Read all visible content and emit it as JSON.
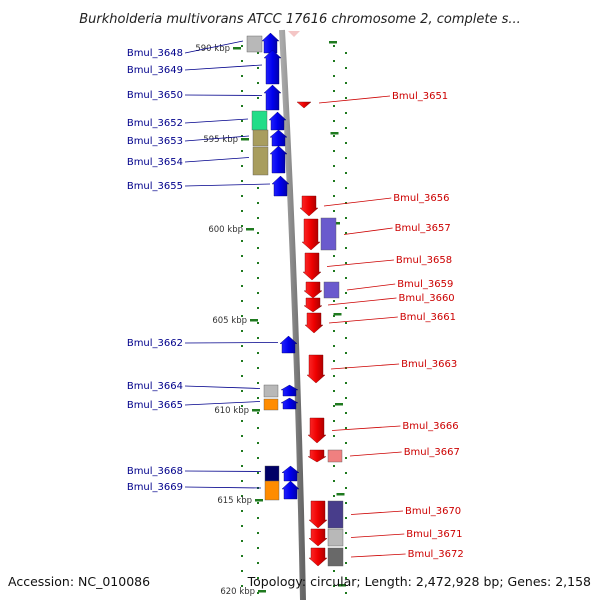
{
  "title": "Burkholderia multivorans ATCC 17616 chromosome 2, complete s...",
  "footer": {
    "accession": "Accession: NC_010086",
    "topology": "Topology: circular; Length: 2,472,928 bp; Genes: 2,158"
  },
  "colors": {
    "forward_strand": "#0000ee",
    "reverse_strand": "#ee0000",
    "backbone": "#8c8c8c",
    "tick": "#1f7a1f",
    "left_label": "#00008b",
    "right_label": "#cc0000"
  },
  "kbp_ticks": [
    "590 kbp",
    "595 kbp",
    "600 kbp",
    "605 kbp",
    "610 kbp",
    "615 kbp",
    "620 kbp"
  ],
  "forward_genes": [
    {
      "label": "Bmul_3648",
      "cog_color": "#b8b8b8"
    },
    {
      "label": "Bmul_3649",
      "cog_color": null
    },
    {
      "label": "Bmul_3650",
      "cog_color": null
    },
    {
      "label": "Bmul_3652",
      "cog_color": "#22dd88"
    },
    {
      "label": "Bmul_3653",
      "cog_color": "#a89d5e"
    },
    {
      "label": "Bmul_3654",
      "cog_color": "#a89d5e"
    },
    {
      "label": "Bmul_3655",
      "cog_color": null
    },
    {
      "label": "Bmul_3662",
      "cog_color": null
    },
    {
      "label": "Bmul_3664",
      "cog_color": "#b8b8b8"
    },
    {
      "label": "Bmul_3665",
      "cog_color": "#ff8c00"
    },
    {
      "label": "Bmul_3668",
      "cog_color": "#000066"
    },
    {
      "label": "Bmul_3669",
      "cog_color": "#ff8c00"
    }
  ],
  "reverse_genes": [
    {
      "label": "Bmul_3651",
      "cog_color": null
    },
    {
      "label": "Bmul_3656",
      "cog_color": null
    },
    {
      "label": "Bmul_3657",
      "cog_color": "#6a5acd"
    },
    {
      "label": "Bmul_3658",
      "cog_color": null
    },
    {
      "label": "Bmul_3659",
      "cog_color": "#6a5acd"
    },
    {
      "label": "Bmul_3660",
      "cog_color": null
    },
    {
      "label": "Bmul_3661",
      "cog_color": null
    },
    {
      "label": "Bmul_3663",
      "cog_color": null
    },
    {
      "label": "Bmul_3666",
      "cog_color": null
    },
    {
      "label": "Bmul_3667",
      "cog_color": "#f08080"
    },
    {
      "label": "Bmul_3670",
      "cog_color": "#483d8b"
    },
    {
      "label": "Bmul_3671",
      "cog_color": "#b8b8b8"
    },
    {
      "label": "Bmul_3672",
      "cog_color": "#696969"
    }
  ]
}
